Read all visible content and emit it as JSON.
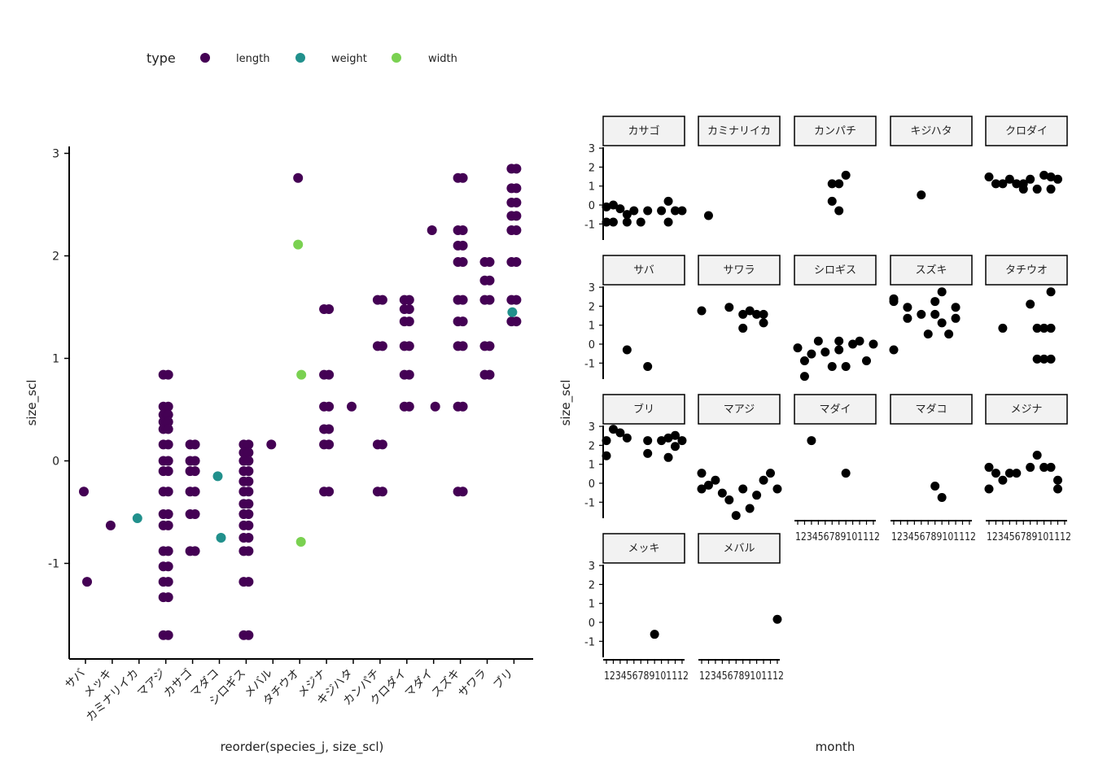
{
  "legend": {
    "title": "type",
    "items": [
      {
        "label": "length",
        "color": "#440154"
      },
      {
        "label": "weight",
        "color": "#21908C"
      },
      {
        "label": "width",
        "color": "#7AD151"
      }
    ]
  },
  "chart_data": [
    {
      "type": "scatter",
      "xlabel": "reorder(species_j, size_scl)",
      "ylabel": "size_scl",
      "yticks": [
        -1,
        0,
        1,
        2,
        3
      ],
      "ylim": [
        -1.9,
        3.05
      ],
      "categories": [
        "サバ",
        "メッキ",
        "カミナリイカ",
        "マアジ",
        "カサゴ",
        "マダコ",
        "シロギス",
        "メバル",
        "タチウオ",
        "メジナ",
        "キジハタ",
        "カンパチ",
        "クロダイ",
        "マダイ",
        "スズキ",
        "サワラ",
        "ブリ"
      ],
      "series": [
        {
          "name": "length",
          "points": [
            {
              "x": "サバ",
              "y": [
                -0.3,
                -1.18
              ]
            },
            {
              "x": "メッキ",
              "y": [
                -0.63
              ]
            },
            {
              "x": "マアジ",
              "y": [
                0.84,
                0.53,
                0.45,
                0.38,
                0.31,
                0.16,
                0.0,
                -0.1,
                -0.3,
                -0.52,
                -0.63,
                -0.88,
                -1.03,
                -1.18,
                -1.33,
                -1.7
              ]
            },
            {
              "x": "カサゴ",
              "y": [
                0.16,
                0.0,
                -0.1,
                -0.3,
                -0.52,
                -0.88
              ]
            },
            {
              "x": "シロギス",
              "y": [
                0.16,
                0.08,
                0.0,
                -0.1,
                -0.2,
                -0.3,
                -0.42,
                -0.52,
                -0.63,
                -0.75,
                -0.88,
                -1.18,
                -1.7
              ]
            },
            {
              "x": "メバル",
              "y": [
                0.16
              ]
            },
            {
              "x": "タチウオ",
              "y": [
                2.76
              ]
            },
            {
              "x": "メジナ",
              "y": [
                1.48,
                0.84,
                0.53,
                0.31,
                0.16,
                -0.3
              ]
            },
            {
              "x": "キジハタ",
              "y": [
                0.53
              ]
            },
            {
              "x": "カンパチ",
              "y": [
                1.57,
                1.12,
                0.16,
                -0.3
              ]
            },
            {
              "x": "クロダイ",
              "y": [
                1.57,
                1.48,
                1.36,
                1.12,
                0.84,
                0.53
              ]
            },
            {
              "x": "マダイ",
              "y": [
                2.25,
                0.53
              ]
            },
            {
              "x": "スズキ",
              "y": [
                2.76,
                2.25,
                2.1,
                1.94,
                1.57,
                1.36,
                1.12,
                0.53,
                -0.3
              ]
            },
            {
              "x": "サワラ",
              "y": [
                1.94,
                1.76,
                1.57,
                1.12,
                0.84
              ]
            },
            {
              "x": "ブリ",
              "y": [
                2.85,
                2.66,
                2.52,
                2.39,
                2.25,
                1.94,
                1.57,
                1.36
              ]
            }
          ]
        },
        {
          "name": "weight",
          "points": [
            {
              "x": "カミナリイカ",
              "y": [
                -0.56
              ]
            },
            {
              "x": "マダコ",
              "y": [
                -0.15,
                -0.75
              ]
            },
            {
              "x": "ブリ",
              "y": [
                1.45
              ]
            }
          ]
        },
        {
          "name": "width",
          "points": [
            {
              "x": "タチウオ",
              "y": [
                2.11,
                0.84,
                -0.79
              ]
            }
          ]
        }
      ]
    },
    {
      "type": "scatter",
      "xlabel": "month",
      "ylabel": "size_scl",
      "yticks": [
        -1,
        0,
        1,
        2,
        3
      ],
      "ylim": [
        -1.9,
        3.1
      ],
      "xticks": [
        1,
        2,
        3,
        4,
        5,
        6,
        7,
        8,
        9,
        10,
        11,
        12
      ],
      "facets": [
        {
          "label": "カサゴ",
          "points": [
            [
              1,
              -0.9
            ],
            [
              1,
              -0.1
            ],
            [
              2,
              0.0
            ],
            [
              2,
              -0.9
            ],
            [
              3,
              -0.2
            ],
            [
              4,
              -0.5
            ],
            [
              4,
              -0.9
            ],
            [
              5,
              -0.3
            ],
            [
              6,
              -0.9
            ],
            [
              7,
              -0.3
            ],
            [
              9,
              -0.3
            ],
            [
              10,
              0.2
            ],
            [
              10,
              -0.9
            ],
            [
              11,
              -0.3
            ],
            [
              12,
              -0.3
            ]
          ]
        },
        {
          "label": "カミナリイカ",
          "points": [
            [
              2,
              -0.56
            ]
          ]
        },
        {
          "label": "カンパチ",
          "points": [
            [
              6,
              0.2
            ],
            [
              6,
              1.12
            ],
            [
              7,
              1.12
            ],
            [
              7,
              -0.3
            ],
            [
              8,
              1.57
            ]
          ]
        },
        {
          "label": "キジハタ",
          "points": [
            [
              5,
              0.53
            ]
          ]
        },
        {
          "label": "クロダイ",
          "points": [
            [
              1,
              1.48
            ],
            [
              2,
              1.12
            ],
            [
              3,
              1.12
            ],
            [
              4,
              1.36
            ],
            [
              5,
              1.12
            ],
            [
              6,
              0.84
            ],
            [
              6,
              1.12
            ],
            [
              7,
              1.36
            ],
            [
              8,
              0.84
            ],
            [
              9,
              1.57
            ],
            [
              10,
              1.48
            ],
            [
              10,
              0.84
            ],
            [
              11,
              1.36
            ]
          ]
        },
        {
          "label": "サバ",
          "points": [
            [
              4,
              -0.3
            ],
            [
              7,
              -1.18
            ]
          ]
        },
        {
          "label": "サワラ",
          "points": [
            [
              1,
              1.76
            ],
            [
              5,
              1.94
            ],
            [
              7,
              0.84
            ],
            [
              7,
              1.57
            ],
            [
              8,
              1.76
            ],
            [
              9,
              1.57
            ],
            [
              10,
              1.12
            ],
            [
              10,
              1.57
            ]
          ]
        },
        {
          "label": "シロギス",
          "points": [
            [
              1,
              -0.2
            ],
            [
              2,
              -0.88
            ],
            [
              2,
              -1.7
            ],
            [
              3,
              -0.52
            ],
            [
              4,
              0.16
            ],
            [
              5,
              -0.42
            ],
            [
              6,
              -1.18
            ],
            [
              7,
              -0.3
            ],
            [
              7,
              0.16
            ],
            [
              8,
              -1.18
            ],
            [
              9,
              0.0
            ],
            [
              10,
              0.16
            ],
            [
              11,
              -0.88
            ],
            [
              12,
              0.0
            ]
          ]
        },
        {
          "label": "スズキ",
          "points": [
            [
              1,
              -0.3
            ],
            [
              1,
              2.25
            ],
            [
              1,
              2.39
            ],
            [
              3,
              1.94
            ],
            [
              3,
              1.36
            ],
            [
              5,
              1.57
            ],
            [
              6,
              0.53
            ],
            [
              7,
              1.57
            ],
            [
              7,
              2.25
            ],
            [
              8,
              2.76
            ],
            [
              8,
              1.12
            ],
            [
              9,
              0.53
            ],
            [
              10,
              1.94
            ],
            [
              10,
              1.36
            ]
          ]
        },
        {
          "label": "タチウオ",
          "points": [
            [
              3,
              0.84
            ],
            [
              7,
              2.11
            ],
            [
              8,
              -0.79
            ],
            [
              8,
              0.84
            ],
            [
              9,
              -0.79
            ],
            [
              9,
              0.84
            ],
            [
              10,
              2.76
            ],
            [
              10,
              -0.79
            ],
            [
              10,
              0.84
            ]
          ]
        },
        {
          "label": "ブリ",
          "points": [
            [
              1,
              2.25
            ],
            [
              1,
              1.45
            ],
            [
              2,
              2.85
            ],
            [
              3,
              2.66
            ],
            [
              4,
              2.39
            ],
            [
              7,
              2.25
            ],
            [
              7,
              1.57
            ],
            [
              9,
              2.25
            ],
            [
              10,
              1.36
            ],
            [
              10,
              2.39
            ],
            [
              11,
              2.52
            ],
            [
              11,
              1.94
            ],
            [
              12,
              2.25
            ]
          ]
        },
        {
          "label": "マアジ",
          "points": [
            [
              1,
              0.53
            ],
            [
              1,
              -0.3
            ],
            [
              2,
              -0.1
            ],
            [
              3,
              0.16
            ],
            [
              4,
              -0.52
            ],
            [
              5,
              -0.88
            ],
            [
              6,
              -1.7
            ],
            [
              7,
              -0.3
            ],
            [
              8,
              -1.33
            ],
            [
              9,
              -0.63
            ],
            [
              10,
              0.16
            ],
            [
              11,
              0.53
            ],
            [
              12,
              -0.3
            ]
          ]
        },
        {
          "label": "マダイ",
          "points": [
            [
              3,
              2.25
            ],
            [
              8,
              0.53
            ]
          ]
        },
        {
          "label": "マダコ",
          "points": [
            [
              7,
              -0.15
            ],
            [
              8,
              -0.75
            ]
          ]
        },
        {
          "label": "メジナ",
          "points": [
            [
              1,
              0.84
            ],
            [
              1,
              -0.3
            ],
            [
              2,
              0.53
            ],
            [
              3,
              0.16
            ],
            [
              4,
              0.53
            ],
            [
              5,
              0.53
            ],
            [
              7,
              0.84
            ],
            [
              8,
              1.48
            ],
            [
              9,
              0.84
            ],
            [
              10,
              0.84
            ],
            [
              11,
              0.16
            ],
            [
              11,
              -0.3
            ]
          ]
        },
        {
          "label": "メッキ",
          "points": [
            [
              8,
              -0.63
            ]
          ]
        },
        {
          "label": "メバル",
          "points": [
            [
              12,
              0.16
            ]
          ]
        }
      ]
    }
  ]
}
